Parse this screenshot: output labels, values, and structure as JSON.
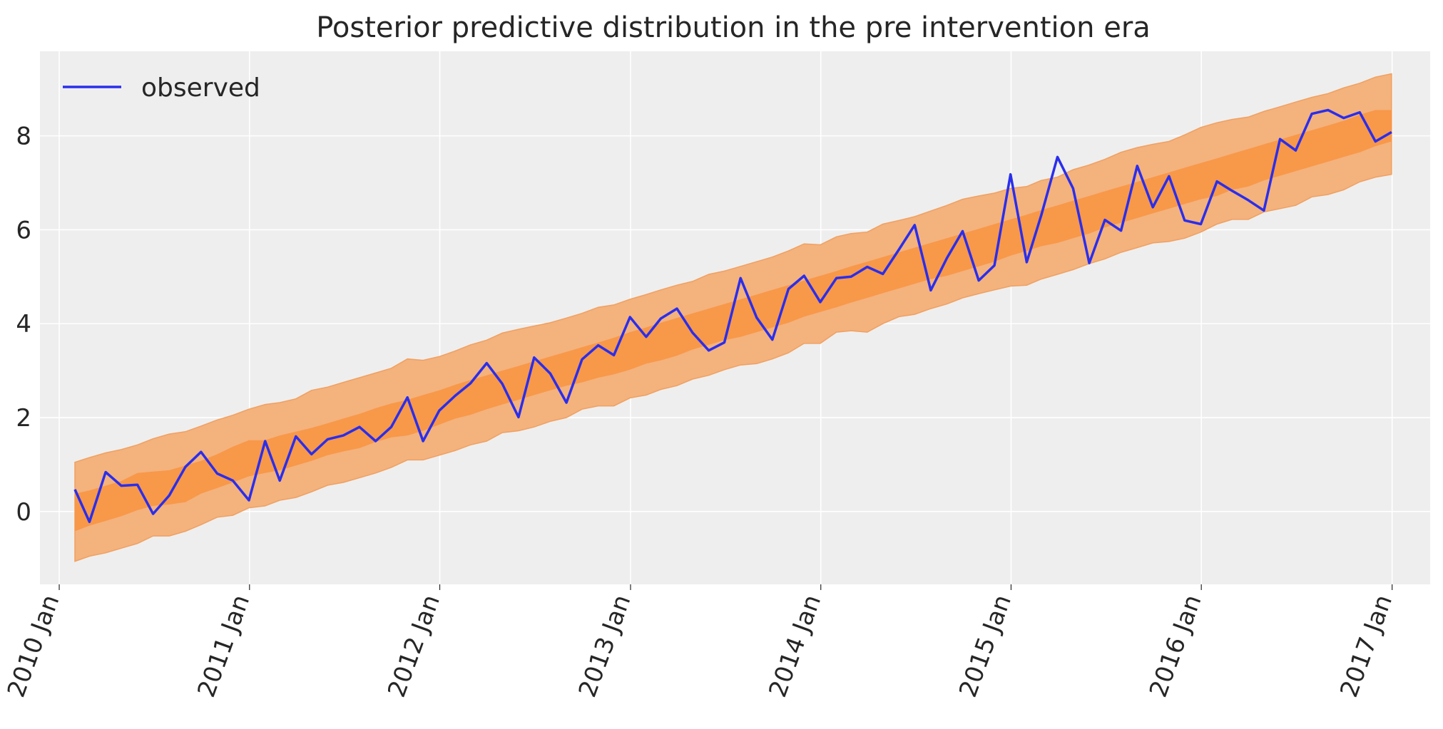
{
  "chart_data": {
    "type": "line",
    "title": "Posterior predictive distribution in the pre intervention era",
    "xlabel": "",
    "ylabel": "",
    "x_ticks": [
      "2010 Jan",
      "2011 Jan",
      "2012 Jan",
      "2013 Jan",
      "2014 Jan",
      "2015 Jan",
      "2016 Jan",
      "2017 Jan"
    ],
    "y_ticks": [
      "0",
      "2",
      "4",
      "6",
      "8"
    ],
    "xlim": [
      "2009-11-25",
      "2017-03-15"
    ],
    "ylim": [
      -1.55,
      9.8
    ],
    "grid": true,
    "legend": {
      "position": "top-left",
      "entries": [
        "observed"
      ]
    },
    "colors": {
      "observed": "#2a2eec",
      "band_outer": "#f4b27d",
      "band_inner": "#f89849",
      "background": "#eeeeee",
      "grid": "#ffffff"
    },
    "x": [
      "2010-01-31",
      "2010-02-28",
      "2010-03-31",
      "2010-04-30",
      "2010-05-31",
      "2010-06-30",
      "2010-07-31",
      "2010-08-31",
      "2010-09-30",
      "2010-10-31",
      "2010-11-30",
      "2010-12-31",
      "2011-01-31",
      "2011-02-28",
      "2011-03-31",
      "2011-04-30",
      "2011-05-31",
      "2011-06-30",
      "2011-07-31",
      "2011-08-31",
      "2011-09-30",
      "2011-10-31",
      "2011-11-30",
      "2011-12-31",
      "2012-01-31",
      "2012-02-29",
      "2012-03-31",
      "2012-04-30",
      "2012-05-31",
      "2012-06-30",
      "2012-07-31",
      "2012-08-31",
      "2012-09-30",
      "2012-10-31",
      "2012-11-30",
      "2012-12-31",
      "2013-01-31",
      "2013-02-28",
      "2013-03-31",
      "2013-04-30",
      "2013-05-31",
      "2013-06-30",
      "2013-07-31",
      "2013-08-31",
      "2013-09-30",
      "2013-10-31",
      "2013-11-30",
      "2013-12-31",
      "2014-01-31",
      "2014-02-28",
      "2014-03-31",
      "2014-04-30",
      "2014-05-31",
      "2014-06-30",
      "2014-07-31",
      "2014-08-31",
      "2014-09-30",
      "2014-10-31",
      "2014-11-30",
      "2014-12-31",
      "2015-01-31",
      "2015-02-28",
      "2015-03-31",
      "2015-04-30",
      "2015-05-31",
      "2015-06-30",
      "2015-07-31",
      "2015-08-31",
      "2015-09-30",
      "2015-10-31",
      "2015-11-30",
      "2015-12-31",
      "2016-01-31",
      "2016-02-29",
      "2016-03-31",
      "2016-04-30",
      "2016-05-31",
      "2016-06-30",
      "2016-07-31",
      "2016-08-31",
      "2016-09-30",
      "2016-10-31",
      "2016-11-30",
      "2016-12-31"
    ],
    "series": [
      {
        "name": "observed",
        "values": [
          0.47,
          -0.22,
          0.84,
          0.55,
          0.57,
          -0.05,
          0.34,
          0.95,
          1.27,
          0.81,
          0.66,
          0.24,
          1.5,
          0.66,
          1.6,
          1.22,
          1.54,
          1.62,
          1.8,
          1.5,
          1.8,
          2.43,
          1.5,
          2.15,
          2.47,
          2.73,
          3.16,
          2.72,
          2.01,
          3.28,
          2.94,
          2.32,
          3.24,
          3.54,
          3.33,
          4.14,
          3.72,
          4.11,
          4.32,
          3.81,
          3.43,
          3.6,
          4.97,
          4.13,
          3.66,
          4.74,
          5.02,
          4.46,
          4.97,
          5.0,
          5.21,
          5.06,
          5.58,
          6.1,
          4.71,
          5.4,
          5.97,
          4.92,
          5.24,
          7.18,
          5.31,
          6.31,
          7.55,
          6.88,
          5.29,
          6.21,
          5.98,
          7.36,
          6.48,
          7.14,
          6.2,
          6.12,
          7.03,
          6.83,
          6.63,
          6.41,
          7.93,
          7.69,
          8.47,
          8.55,
          8.38,
          8.5,
          7.88,
          8.08
        ]
      }
    ],
    "bands": {
      "inner": {
        "lower": [
          -0.42,
          -0.3,
          -0.2,
          -0.1,
          0.03,
          0.12,
          0.15,
          0.2,
          0.38,
          0.5,
          0.62,
          0.75,
          0.82,
          0.88,
          0.98,
          1.08,
          1.2,
          1.28,
          1.35,
          1.48,
          1.58,
          1.62,
          1.72,
          1.85,
          1.98,
          2.06,
          2.18,
          2.28,
          2.38,
          2.48,
          2.58,
          2.68,
          2.75,
          2.85,
          2.92,
          3.02,
          3.15,
          3.22,
          3.32,
          3.45,
          3.55,
          3.65,
          3.72,
          3.82,
          3.92,
          4.02,
          4.15,
          4.25,
          4.35,
          4.45,
          4.55,
          4.65,
          4.75,
          4.85,
          4.95,
          5.02,
          5.12,
          5.22,
          5.32,
          5.45,
          5.55,
          5.65,
          5.72,
          5.82,
          5.92,
          6.05,
          6.15,
          6.25,
          6.35,
          6.45,
          6.55,
          6.65,
          6.72,
          6.85,
          6.92,
          7.05,
          7.15,
          7.25,
          7.35,
          7.45,
          7.55,
          7.65,
          7.78,
          7.88
        ],
        "upper": [
          0.38,
          0.45,
          0.55,
          0.65,
          0.82,
          0.85,
          0.88,
          0.98,
          1.08,
          1.22,
          1.38,
          1.52,
          1.52,
          1.62,
          1.7,
          1.78,
          1.88,
          1.98,
          2.08,
          2.2,
          2.3,
          2.38,
          2.48,
          2.58,
          2.7,
          2.8,
          2.9,
          3.0,
          3.1,
          3.2,
          3.3,
          3.4,
          3.5,
          3.6,
          3.7,
          3.82,
          3.92,
          4.02,
          4.12,
          4.22,
          4.32,
          4.42,
          4.52,
          4.62,
          4.72,
          4.82,
          4.92,
          5.02,
          5.12,
          5.22,
          5.32,
          5.42,
          5.52,
          5.62,
          5.72,
          5.82,
          5.92,
          6.02,
          6.12,
          6.22,
          6.32,
          6.42,
          6.52,
          6.62,
          6.72,
          6.82,
          6.92,
          7.02,
          7.12,
          7.22,
          7.32,
          7.42,
          7.52,
          7.62,
          7.72,
          7.82,
          7.92,
          8.02,
          8.12,
          8.22,
          8.32,
          8.45,
          8.55,
          8.55
        ]
      },
      "outer": {
        "lower": [
          -1.06,
          -0.95,
          -0.88,
          -0.78,
          -0.68,
          -0.52,
          -0.52,
          -0.42,
          -0.28,
          -0.12,
          -0.08,
          0.08,
          0.12,
          0.24,
          0.3,
          0.42,
          0.56,
          0.62,
          0.72,
          0.82,
          0.94,
          1.1,
          1.1,
          1.2,
          1.3,
          1.42,
          1.5,
          1.68,
          1.72,
          1.8,
          1.92,
          2.0,
          2.18,
          2.25,
          2.25,
          2.42,
          2.48,
          2.6,
          2.68,
          2.82,
          2.9,
          3.02,
          3.12,
          3.15,
          3.25,
          3.38,
          3.58,
          3.58,
          3.82,
          3.85,
          3.82,
          4.0,
          4.15,
          4.2,
          4.32,
          4.42,
          4.55,
          4.64,
          4.72,
          4.8,
          4.82,
          4.95,
          5.05,
          5.15,
          5.28,
          5.38,
          5.52,
          5.62,
          5.72,
          5.75,
          5.82,
          5.95,
          6.12,
          6.22,
          6.22,
          6.38,
          6.45,
          6.52,
          6.7,
          6.75,
          6.85,
          7.02,
          7.12,
          7.18
        ],
        "upper": [
          1.05,
          1.15,
          1.25,
          1.32,
          1.42,
          1.55,
          1.65,
          1.7,
          1.82,
          1.95,
          2.05,
          2.18,
          2.28,
          2.32,
          2.4,
          2.58,
          2.65,
          2.75,
          2.85,
          2.95,
          3.05,
          3.25,
          3.22,
          3.3,
          3.42,
          3.55,
          3.65,
          3.8,
          3.88,
          3.95,
          4.02,
          4.12,
          4.22,
          4.35,
          4.4,
          4.52,
          4.62,
          4.72,
          4.82,
          4.9,
          5.05,
          5.12,
          5.22,
          5.32,
          5.42,
          5.55,
          5.7,
          5.68,
          5.85,
          5.92,
          5.95,
          6.12,
          6.2,
          6.28,
          6.4,
          6.52,
          6.65,
          6.72,
          6.78,
          6.88,
          6.92,
          7.05,
          7.12,
          7.28,
          7.38,
          7.5,
          7.65,
          7.75,
          7.82,
          7.88,
          8.02,
          8.18,
          8.28,
          8.35,
          8.4,
          8.52,
          8.62,
          8.72,
          8.82,
          8.9,
          9.02,
          9.12,
          9.25,
          9.32
        ]
      }
    }
  }
}
